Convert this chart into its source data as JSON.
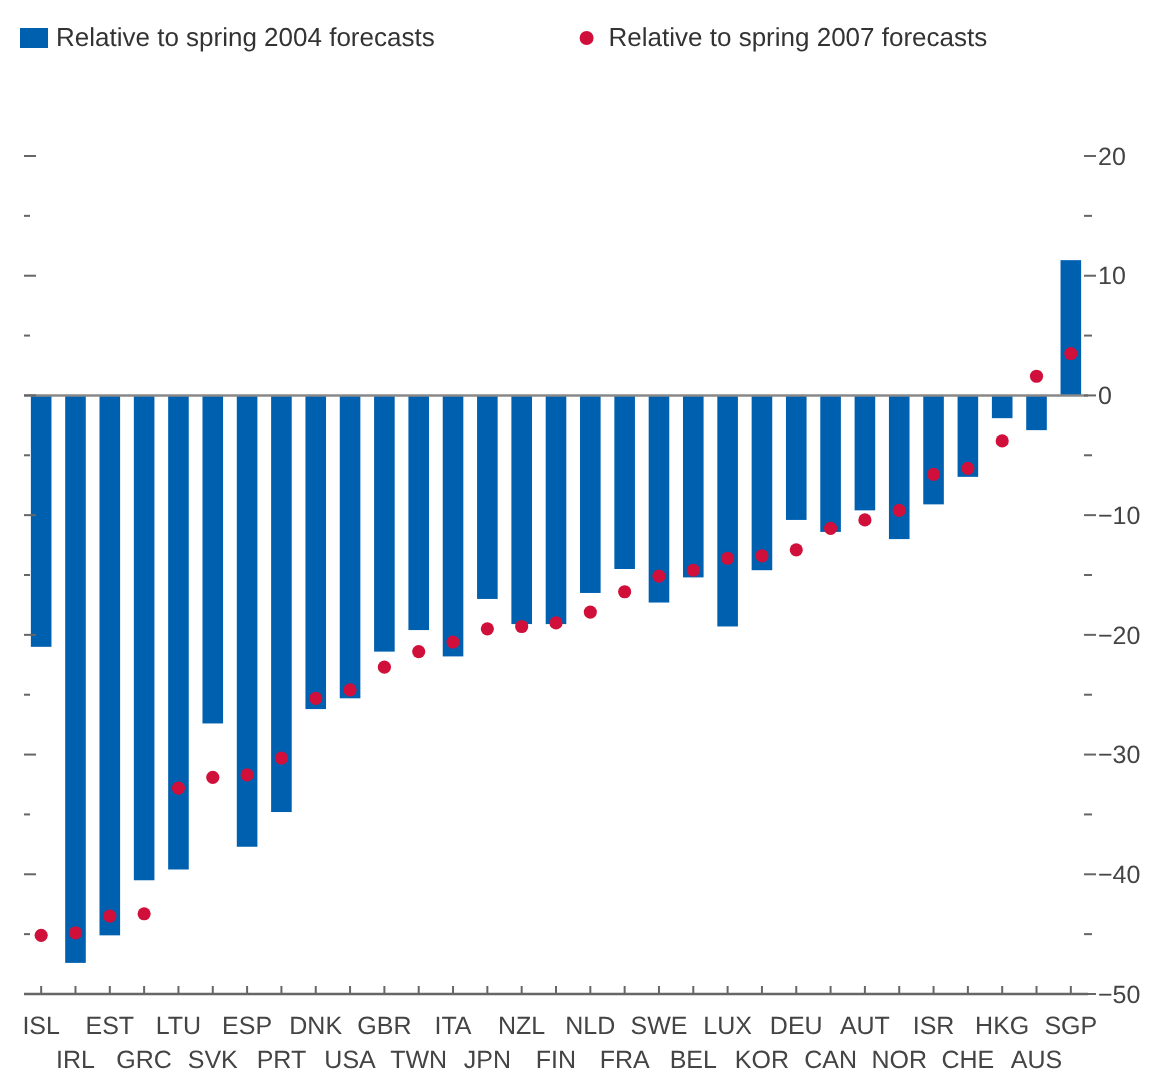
{
  "chart_data": {
    "type": "bar",
    "categories": [
      "ISL",
      "IRL",
      "EST",
      "GRC",
      "LTU",
      "SVK",
      "ESP",
      "PRT",
      "DNK",
      "USA",
      "GBR",
      "TWN",
      "ITA",
      "JPN",
      "NZL",
      "FIN",
      "NLD",
      "FRA",
      "SWE",
      "BEL",
      "LUX",
      "KOR",
      "DEU",
      "CAN",
      "AUT",
      "NOR",
      "ISR",
      "CHE",
      "HKG",
      "AUS",
      "SGP"
    ],
    "series": [
      {
        "name": "Relative to spring 2004 forecasts",
        "color": "#0060b0",
        "values": [
          -21.0,
          -47.4,
          -45.1,
          -40.5,
          -39.6,
          -27.4,
          -37.7,
          -34.8,
          -26.2,
          -25.3,
          -21.4,
          -19.6,
          -21.8,
          -17.0,
          -19.1,
          -19.1,
          -16.5,
          -14.5,
          -17.3,
          -15.2,
          -19.3,
          -14.6,
          -10.4,
          -11.4,
          -9.6,
          -12.0,
          -9.1,
          -6.8,
          -1.9,
          -2.9,
          11.3
        ]
      },
      {
        "name": "Relative to spring 2007 forecasts",
        "type": "scatter",
        "color": "#d0103a",
        "values": [
          -45.1,
          -44.9,
          -43.5,
          -43.3,
          -32.8,
          -31.9,
          -31.7,
          -30.3,
          -25.3,
          -24.6,
          -22.7,
          -21.4,
          -20.6,
          -19.5,
          -19.3,
          -19.0,
          -18.1,
          -16.4,
          -15.1,
          -14.6,
          -13.6,
          -13.4,
          -12.9,
          -11.1,
          -10.4,
          -9.6,
          -6.6,
          -6.1,
          -3.8,
          1.6,
          3.5
        ]
      }
    ],
    "ylim": [
      -50,
      20
    ],
    "yticks": [
      20,
      {
        "value": 15,
        "label": null
      },
      10,
      {
        "value": 5,
        "label": null
      },
      0,
      {
        "value": -5,
        "label": null
      },
      {
        "value": -10,
        "label": "−10"
      },
      {
        "value": -15,
        "label": null
      },
      {
        "value": -20,
        "label": "−20"
      },
      {
        "value": -25,
        "label": null
      },
      {
        "value": -30,
        "label": "−30"
      },
      {
        "value": -35,
        "label": null
      },
      {
        "value": -40,
        "label": "−40"
      },
      {
        "value": -45,
        "label": null
      },
      {
        "value": -50,
        "label": "−50"
      }
    ],
    "legend": "top",
    "marker": "circle"
  }
}
